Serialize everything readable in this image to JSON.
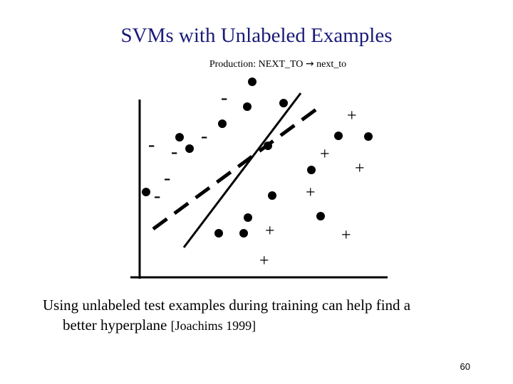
{
  "slide": {
    "title": "SVMs with Unlabeled Examples",
    "subtitle_prefix": "Production: NEXT_TO ",
    "subtitle_arrow": "→",
    "subtitle_suffix": " next_to",
    "caption_line1": "Using unlabeled test examples during training can help find a",
    "caption_line2_main": "better hyperplane ",
    "caption_citation": "[Joachims 1999]",
    "page_number": "60"
  },
  "diagram": {
    "negative_label": "-",
    "positive_label": "+",
    "legend": {
      "unlabeled": "black filled dot",
      "negative": "minus sign",
      "positive": "plus sign"
    },
    "separators": {
      "solid": "hyperplane using labeled examples only",
      "dashed": "hyperplane using unlabeled examples (transductive SVM)"
    }
  }
}
